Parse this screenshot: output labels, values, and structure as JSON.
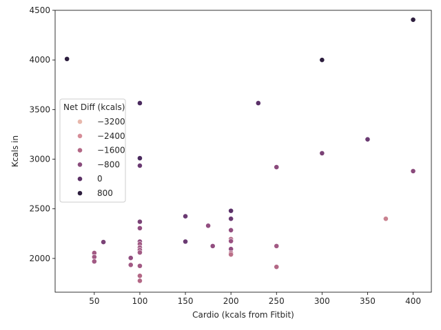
{
  "chart_data": {
    "type": "scatter",
    "xlabel": "Cardio (kcals from Fitbit)",
    "ylabel": "Kcals in",
    "xlim": [
      7,
      420
    ],
    "ylim": [
      1660,
      4500
    ],
    "xticks": [
      50,
      100,
      150,
      200,
      250,
      300,
      350,
      400
    ],
    "yticks": [
      2000,
      2500,
      3000,
      3500,
      4000,
      4500
    ],
    "grid": false,
    "legend": {
      "title": "Net Diff (kcals)",
      "placement": "center-left",
      "entries": [
        {
          "label": "−3200",
          "color": "#e8b8ac"
        },
        {
          "label": "−2400",
          "color": "#d68d98"
        },
        {
          "label": "−1600",
          "color": "#b36886"
        },
        {
          "label": "−800",
          "color": "#894c7c"
        },
        {
          "label": "0",
          "color": "#5c3166"
        },
        {
          "label": "800",
          "color": "#2d1e3e"
        }
      ]
    },
    "points": [
      {
        "x": 20,
        "y": 4010,
        "color": "#2d1e3e"
      },
      {
        "x": 300,
        "y": 4000,
        "color": "#2d1e3e"
      },
      {
        "x": 400,
        "y": 4405,
        "color": "#2d1e3e"
      },
      {
        "x": 100,
        "y": 3565,
        "color": "#4a2a5e"
      },
      {
        "x": 230,
        "y": 3565,
        "color": "#5a3068"
      },
      {
        "x": 350,
        "y": 3200,
        "color": "#6a3a72"
      },
      {
        "x": 300,
        "y": 3060,
        "color": "#7a4276"
      },
      {
        "x": 100,
        "y": 3010,
        "color": "#4a2a5e"
      },
      {
        "x": 100,
        "y": 2935,
        "color": "#6a3a72"
      },
      {
        "x": 250,
        "y": 2920,
        "color": "#8a4a7c"
      },
      {
        "x": 400,
        "y": 2880,
        "color": "#8a4a7c"
      },
      {
        "x": 200,
        "y": 2480,
        "color": "#5a3068"
      },
      {
        "x": 150,
        "y": 2425,
        "color": "#6a3a72"
      },
      {
        "x": 200,
        "y": 2400,
        "color": "#6a3a72"
      },
      {
        "x": 370,
        "y": 2400,
        "color": "#c98290"
      },
      {
        "x": 100,
        "y": 2370,
        "color": "#7a4276"
      },
      {
        "x": 175,
        "y": 2330,
        "color": "#924e80"
      },
      {
        "x": 100,
        "y": 2305,
        "color": "#924e80"
      },
      {
        "x": 200,
        "y": 2285,
        "color": "#924e80"
      },
      {
        "x": 200,
        "y": 2195,
        "color": "#b36886"
      },
      {
        "x": 200,
        "y": 2175,
        "color": "#9a5282"
      },
      {
        "x": 100,
        "y": 2170,
        "color": "#924e80"
      },
      {
        "x": 150,
        "y": 2170,
        "color": "#6a3a72"
      },
      {
        "x": 60,
        "y": 2165,
        "color": "#7a4276"
      },
      {
        "x": 100,
        "y": 2145,
        "color": "#a25a84"
      },
      {
        "x": 180,
        "y": 2125,
        "color": "#924e80"
      },
      {
        "x": 250,
        "y": 2125,
        "color": "#a25a84"
      },
      {
        "x": 100,
        "y": 2110,
        "color": "#a25a84"
      },
      {
        "x": 200,
        "y": 2095,
        "color": "#924e80"
      },
      {
        "x": 100,
        "y": 2085,
        "color": "#a25a84"
      },
      {
        "x": 100,
        "y": 2060,
        "color": "#a25a84"
      },
      {
        "x": 50,
        "y": 2055,
        "color": "#a25a84"
      },
      {
        "x": 200,
        "y": 2055,
        "color": "#b36886"
      },
      {
        "x": 200,
        "y": 2040,
        "color": "#bb7088"
      },
      {
        "x": 50,
        "y": 2015,
        "color": "#a25a84"
      },
      {
        "x": 90,
        "y": 2005,
        "color": "#924e80"
      },
      {
        "x": 50,
        "y": 1970,
        "color": "#a25a84"
      },
      {
        "x": 90,
        "y": 1935,
        "color": "#a25a84"
      },
      {
        "x": 100,
        "y": 1925,
        "color": "#a25a84"
      },
      {
        "x": 250,
        "y": 1915,
        "color": "#b36886"
      },
      {
        "x": 100,
        "y": 1825,
        "color": "#b36886"
      },
      {
        "x": 100,
        "y": 1775,
        "color": "#b36886"
      }
    ]
  }
}
